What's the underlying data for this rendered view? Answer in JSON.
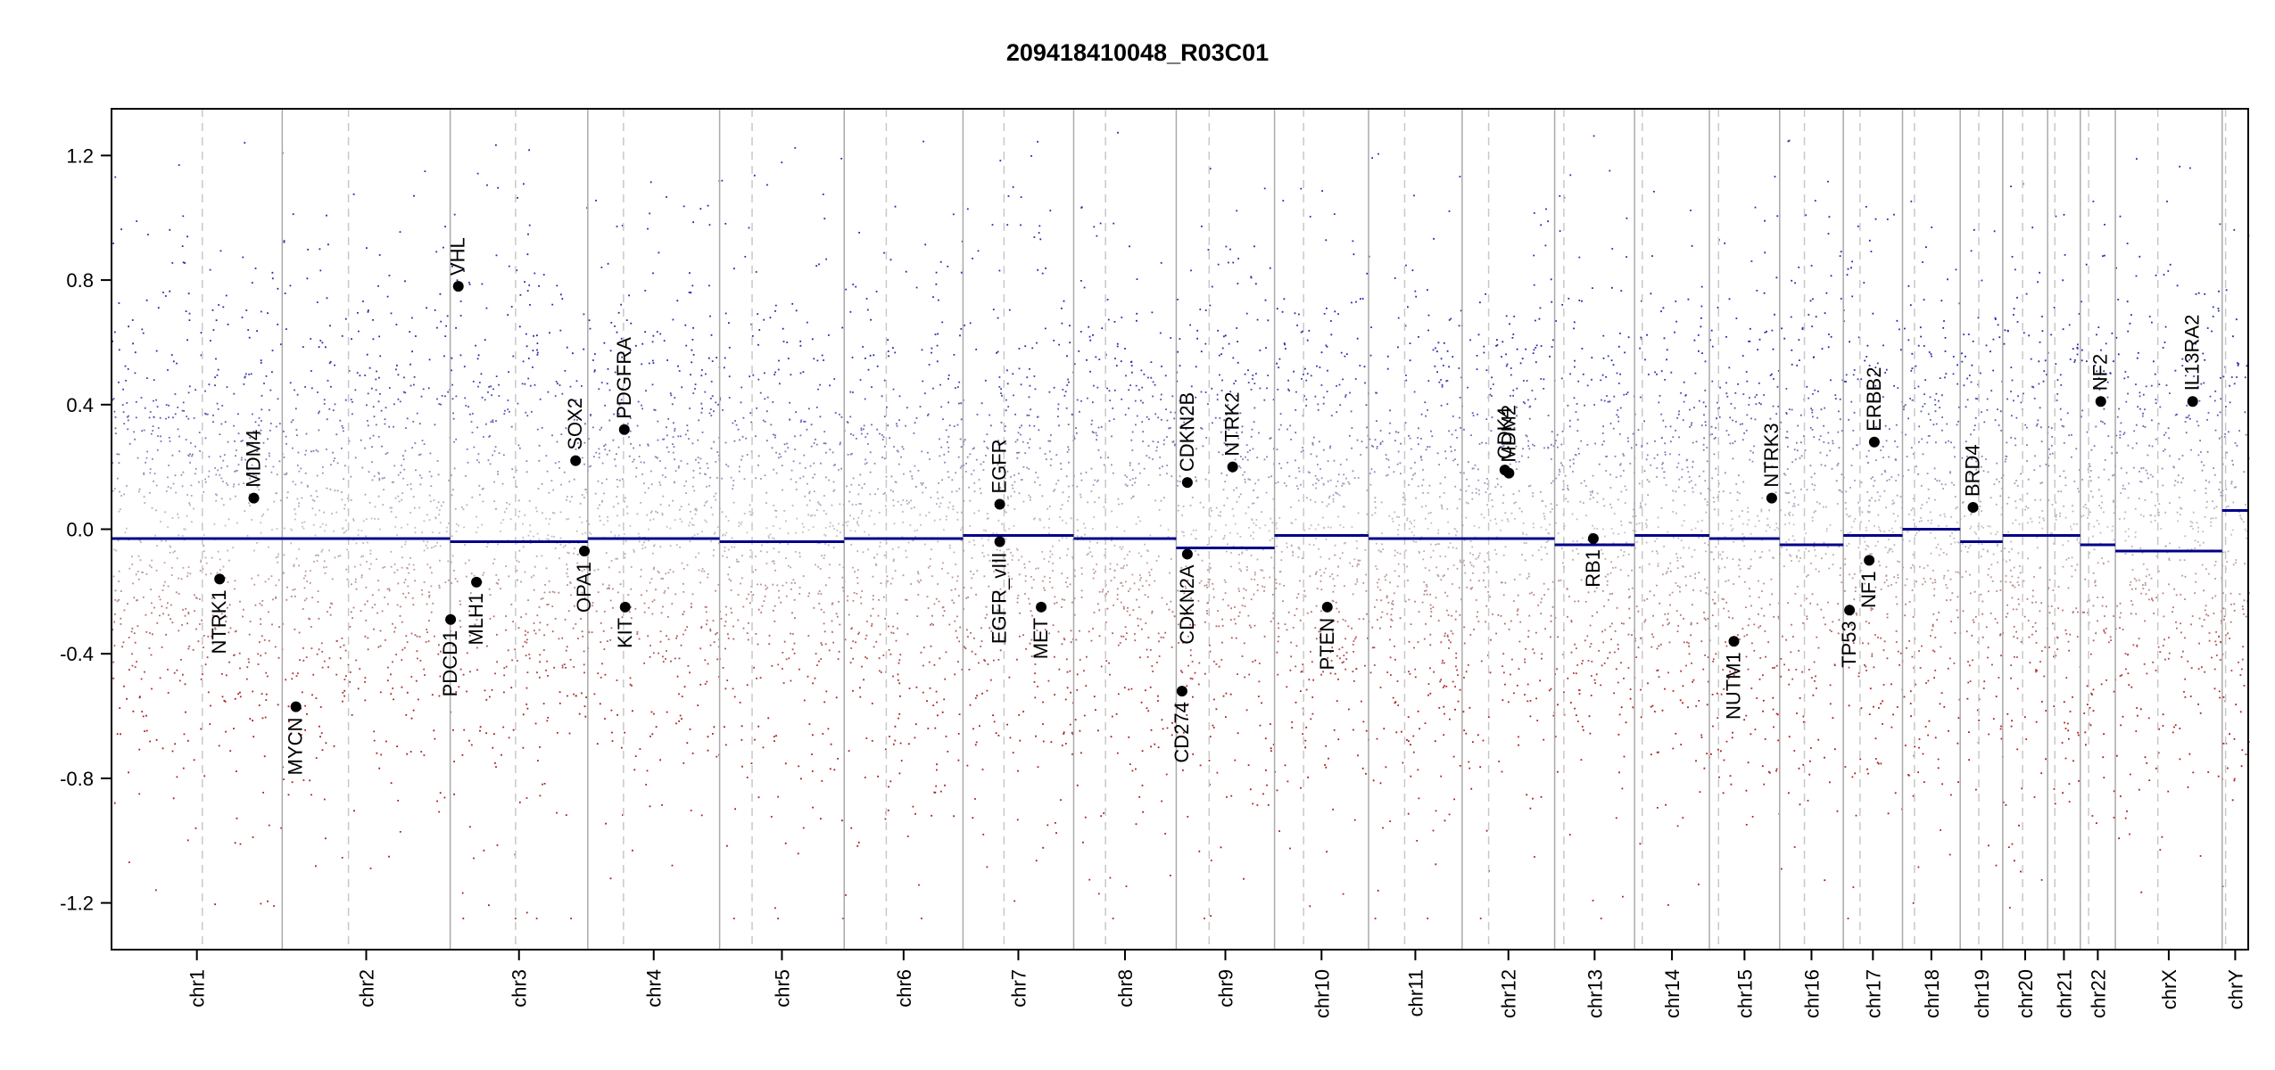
{
  "chart_data": {
    "type": "scatter",
    "title": "209418410048_R03C01",
    "xlabel": "",
    "ylabel": "",
    "ylim": [
      -1.35,
      1.35
    ],
    "yticks": [
      1.2,
      0.8,
      0.4,
      0.0,
      -0.4,
      -0.8,
      -1.2
    ],
    "ytick_labels": [
      "1.2",
      "0.8",
      "0.4",
      "0.0",
      "-0.4",
      "-0.8",
      "-1.2"
    ],
    "x_unit": "relative genome position",
    "grid": false,
    "colors": {
      "gain": "#2a2aa8",
      "loss": "#a82020",
      "neutral": "#bbbbbb",
      "segment": "#00008b",
      "boundary": "#aaaaaa",
      "centromere": "#c8c8c8"
    },
    "chromosomes": [
      {
        "name": "chr1",
        "start": 0.0,
        "end": 0.0799,
        "centromere": 0.0425,
        "segment_value": -0.03
      },
      {
        "name": "chr2",
        "start": 0.0799,
        "end": 0.1585,
        "centromere": 0.1109,
        "segment_value": -0.03
      },
      {
        "name": "chr3",
        "start": 0.1585,
        "end": 0.2229,
        "centromere": 0.1891,
        "segment_value": -0.04
      },
      {
        "name": "chr4",
        "start": 0.2229,
        "end": 0.2846,
        "centromere": 0.2396,
        "segment_value": -0.03
      },
      {
        "name": "chr5",
        "start": 0.2846,
        "end": 0.3429,
        "centromere": 0.2998,
        "segment_value": -0.04
      },
      {
        "name": "chr6",
        "start": 0.3429,
        "end": 0.3985,
        "centromere": 0.3626,
        "segment_value": -0.03
      },
      {
        "name": "chr7",
        "start": 0.3985,
        "end": 0.4503,
        "centromere": 0.4177,
        "segment_value": -0.02
      },
      {
        "name": "chr8",
        "start": 0.4503,
        "end": 0.4983,
        "centromere": 0.4652,
        "segment_value": -0.03
      },
      {
        "name": "chr9",
        "start": 0.4983,
        "end": 0.5443,
        "centromere": 0.5137,
        "segment_value": -0.06
      },
      {
        "name": "chr10",
        "start": 0.5443,
        "end": 0.5883,
        "centromere": 0.5579,
        "segment_value": -0.02
      },
      {
        "name": "chr11",
        "start": 0.5883,
        "end": 0.6321,
        "centromere": 0.6052,
        "segment_value": -0.03
      },
      {
        "name": "chr12",
        "start": 0.6321,
        "end": 0.6754,
        "centromere": 0.6445,
        "segment_value": -0.03
      },
      {
        "name": "chr13",
        "start": 0.6754,
        "end": 0.7128,
        "centromere": 0.6797,
        "segment_value": -0.05
      },
      {
        "name": "chr14",
        "start": 0.7128,
        "end": 0.7478,
        "centromere": 0.7164,
        "segment_value": -0.02
      },
      {
        "name": "chr15",
        "start": 0.7478,
        "end": 0.7807,
        "centromere": 0.7521,
        "segment_value": -0.03
      },
      {
        "name": "chr16",
        "start": 0.7807,
        "end": 0.8105,
        "centromere": 0.7923,
        "segment_value": -0.05
      },
      {
        "name": "chr17",
        "start": 0.8105,
        "end": 0.8382,
        "centromere": 0.8183,
        "segment_value": -0.02
      },
      {
        "name": "chr18",
        "start": 0.8382,
        "end": 0.8652,
        "centromere": 0.8438,
        "segment_value": 0.0
      },
      {
        "name": "chr19",
        "start": 0.8652,
        "end": 0.8851,
        "centromere": 0.8739,
        "segment_value": -0.04
      },
      {
        "name": "chr20",
        "start": 0.8851,
        "end": 0.9061,
        "centromere": 0.8944,
        "segment_value": -0.02
      },
      {
        "name": "chr21",
        "start": 0.9061,
        "end": 0.9214,
        "centromere": 0.9095,
        "segment_value": -0.02
      },
      {
        "name": "chr22",
        "start": 0.9214,
        "end": 0.9378,
        "centromere": 0.9253,
        "segment_value": -0.05
      },
      {
        "name": "chrX",
        "start": 0.9378,
        "end": 0.9878,
        "centromere": 0.9577,
        "segment_value": -0.07
      },
      {
        "name": "chrY",
        "start": 0.9878,
        "end": 1.0,
        "centromere": 0.9894,
        "segment_value": 0.06
      }
    ],
    "genes": [
      {
        "name": "MDM4",
        "x": 0.0666,
        "y": 0.1,
        "side": "up"
      },
      {
        "name": "NTRK1",
        "x": 0.0506,
        "y": -0.16,
        "side": "down"
      },
      {
        "name": "MYCN",
        "x": 0.0863,
        "y": -0.57,
        "side": "down"
      },
      {
        "name": "VHL",
        "x": 0.1623,
        "y": 0.78,
        "side": "up"
      },
      {
        "name": "PDCD1",
        "x": 0.1587,
        "y": -0.29,
        "side": "down"
      },
      {
        "name": "MLH1",
        "x": 0.1708,
        "y": -0.17,
        "side": "down"
      },
      {
        "name": "SOX2",
        "x": 0.2172,
        "y": 0.22,
        "side": "up"
      },
      {
        "name": "OPA1",
        "x": 0.2213,
        "y": -0.07,
        "side": "down"
      },
      {
        "name": "PDGFRA",
        "x": 0.24,
        "y": 0.32,
        "side": "up"
      },
      {
        "name": "KIT",
        "x": 0.2404,
        "y": -0.25,
        "side": "down"
      },
      {
        "name": "EGFR",
        "x": 0.4157,
        "y": 0.08,
        "side": "up"
      },
      {
        "name": "EGFR_vIII",
        "x": 0.4157,
        "y": -0.04,
        "side": "down"
      },
      {
        "name": "MET",
        "x": 0.4351,
        "y": -0.25,
        "side": "down"
      },
      {
        "name": "CDKN2B",
        "x": 0.5035,
        "y": 0.15,
        "side": "up"
      },
      {
        "name": "CDKN2A",
        "x": 0.5035,
        "y": -0.08,
        "side": "down"
      },
      {
        "name": "CD274",
        "x": 0.501,
        "y": -0.52,
        "side": "down"
      },
      {
        "name": "NTRK2",
        "x": 0.5247,
        "y": 0.2,
        "side": "up"
      },
      {
        "name": "PTEN",
        "x": 0.569,
        "y": -0.25,
        "side": "down"
      },
      {
        "name": "CDK4",
        "x": 0.6521,
        "y": 0.19,
        "side": "up"
      },
      {
        "name": "MDM2",
        "x": 0.654,
        "y": 0.18,
        "side": "up"
      },
      {
        "name": "RB1",
        "x": 0.6935,
        "y": -0.03,
        "side": "down"
      },
      {
        "name": "NUTM1",
        "x": 0.7593,
        "y": -0.36,
        "side": "down"
      },
      {
        "name": "NTRK3",
        "x": 0.777,
        "y": 0.1,
        "side": "up"
      },
      {
        "name": "TP53",
        "x": 0.8134,
        "y": -0.26,
        "side": "down"
      },
      {
        "name": "NF1",
        "x": 0.8226,
        "y": -0.1,
        "side": "down"
      },
      {
        "name": "ERBB2",
        "x": 0.825,
        "y": 0.28,
        "side": "up"
      },
      {
        "name": "BRD4",
        "x": 0.8712,
        "y": 0.07,
        "side": "up"
      },
      {
        "name": "NF2",
        "x": 0.931,
        "y": 0.41,
        "side": "up"
      },
      {
        "name": "IL13RA2",
        "x": 0.974,
        "y": 0.41,
        "side": "up"
      }
    ]
  }
}
